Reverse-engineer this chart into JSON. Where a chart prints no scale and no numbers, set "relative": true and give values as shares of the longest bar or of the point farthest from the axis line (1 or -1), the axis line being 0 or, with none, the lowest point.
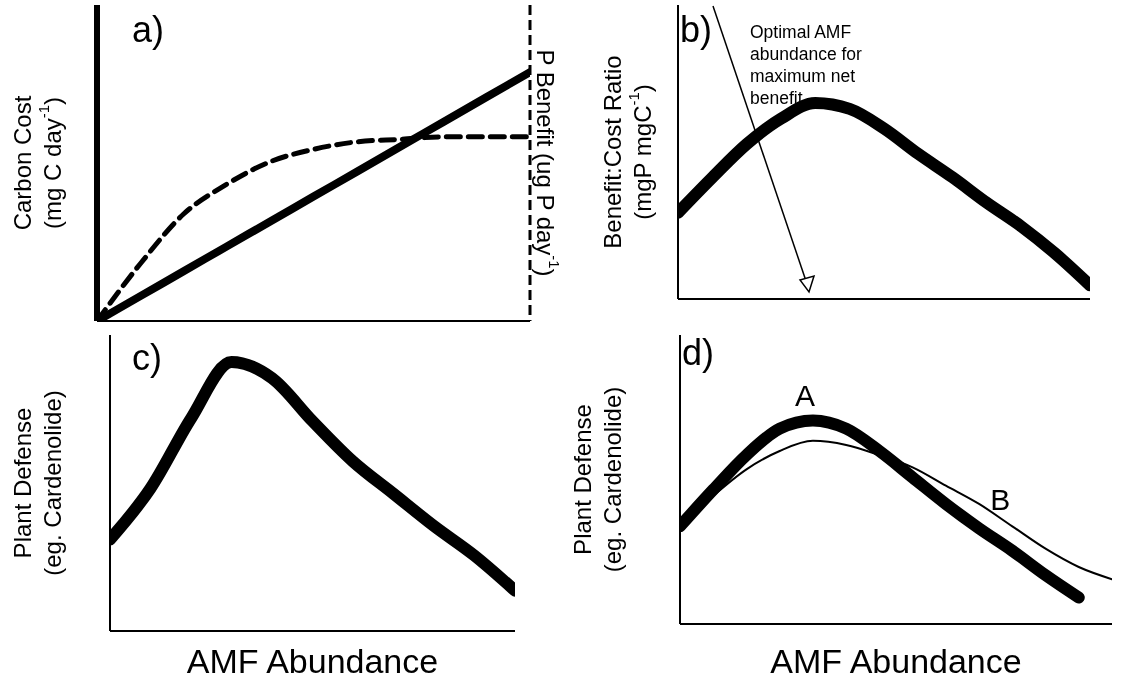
{
  "chart_data": [
    {
      "type": "line",
      "relative": true,
      "title": "a)",
      "ylabel": "Carbon Cost\n(mg C day$^{-1}$)",
      "y2label": "P Benefit (ug P day$^{-1}$)",
      "categories": [
        null,
        null,
        null,
        null,
        null,
        null,
        null,
        null,
        null,
        null,
        null
      ],
      "series": [
        {
          "color": "#000000",
          "line_style": "solid",
          "values": [
            0,
            0.1,
            0.2,
            0.3,
            0.4,
            0.5,
            0.6,
            0.7,
            0.8,
            0.9,
            1
          ]
        },
        {
          "color": "#000000",
          "line_style": "dashed",
          "values": [
            0,
            0.23,
            0.43,
            0.55,
            0.64,
            0.69,
            0.72,
            0.73,
            0.74,
            0.74,
            0.74
          ]
        }
      ]
    },
    {
      "type": "line",
      "relative": true,
      "title": "b)",
      "ylabel": "Benefit:Cost Ratio\n(mgP mgC$^{-1}$)",
      "annotations": [
        "Optimal AMF abundance for maximum net benefit"
      ],
      "categories": [
        null,
        null,
        null,
        null,
        null,
        null,
        null,
        null,
        null,
        null,
        null,
        null,
        null
      ],
      "series": [
        {
          "color": "#000000",
          "values": [
            0.44,
            0.62,
            0.79,
            0.92,
            1,
            0.97,
            0.87,
            0.74,
            0.62,
            0.49,
            0.37,
            0.23,
            0.07
          ]
        }
      ]
    },
    {
      "type": "line",
      "relative": true,
      "title": "c)",
      "ylabel": "Plant Defense\n(eg. Cardenolide)",
      "xlabel": "AMF Abundance",
      "categories": [
        null,
        null,
        null,
        null,
        null,
        null,
        null,
        null,
        null,
        null,
        null
      ],
      "series": [
        {
          "color": "#000000",
          "values": [
            0.34,
            0.53,
            0.79,
            1,
            0.94,
            0.78,
            0.63,
            0.51,
            0.39,
            0.28,
            0.15
          ]
        }
      ]
    },
    {
      "type": "line",
      "relative": true,
      "title": "d)",
      "ylabel": "Plant Defense\n(eg. Cardenolide)",
      "xlabel": "AMF Abundance",
      "categories": [
        null,
        null,
        null,
        null,
        null,
        null,
        null,
        null,
        null,
        null,
        null,
        null,
        null,
        null
      ],
      "series": [
        {
          "name": "A",
          "color": "#000000",
          "values": [
            0.48,
            0.66,
            0.83,
            0.96,
            1,
            0.96,
            0.85,
            0.72,
            0.59,
            0.47,
            0.36,
            0.24,
            0.13,
            null
          ]
        },
        {
          "name": "B",
          "color": "#000000",
          "values": [
            0.48,
            0.63,
            0.76,
            0.85,
            0.9,
            0.88,
            0.83,
            0.77,
            0.68,
            0.59,
            0.48,
            0.37,
            0.28,
            0.22
          ]
        }
      ]
    }
  ]
}
